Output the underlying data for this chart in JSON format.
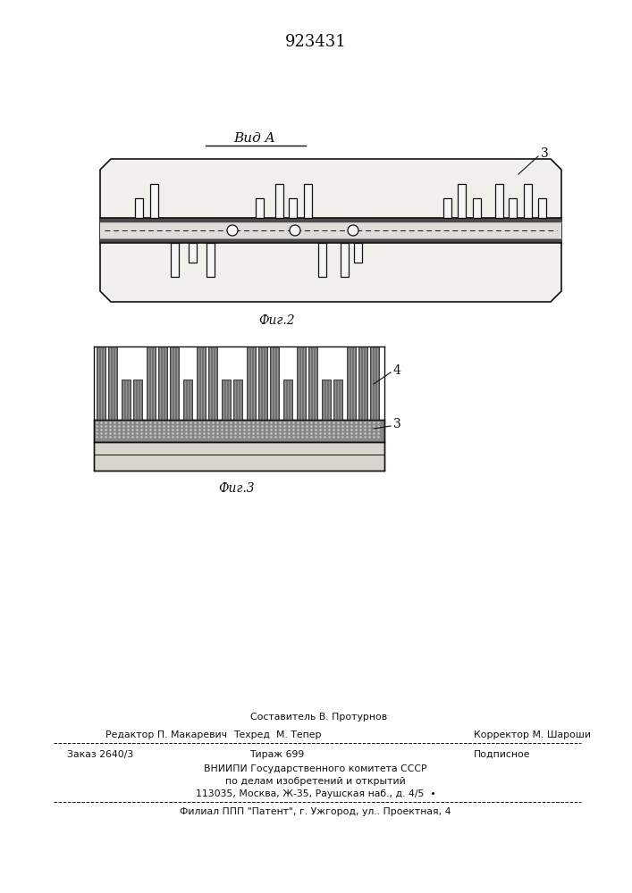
{
  "patent_number": "923431",
  "fig2_label": "Фиг.2",
  "fig3_label": "Фиг.3",
  "vid_label": "Вид A",
  "label_3": "3",
  "label_4": "4",
  "footer_line1": "  Составитель В. Протурнов",
  "footer_line2_l": "Редактор П. Макаревич",
  "footer_line2_m": "Техред  М. Тепер",
  "footer_line2_r": "Корректор М. Шароши",
  "footer_line3_l": "Заказ 2640/3",
  "footer_line3_m": "Тираж 699",
  "footer_line3_r": "Подписное",
  "footer_line4": "ВНИИПИ Государственного комитета СССР",
  "footer_line5": "по делам изобретений и открытий",
  "footer_line6": "113035, Москва, Ж-35, Раушская наб., д. 4/5  •",
  "footer_line7": "Филиал ППП \"Патент\", г. Ужгород, ул.. Проектная, 4",
  "bg_color": "#ffffff",
  "line_color": "#111111"
}
